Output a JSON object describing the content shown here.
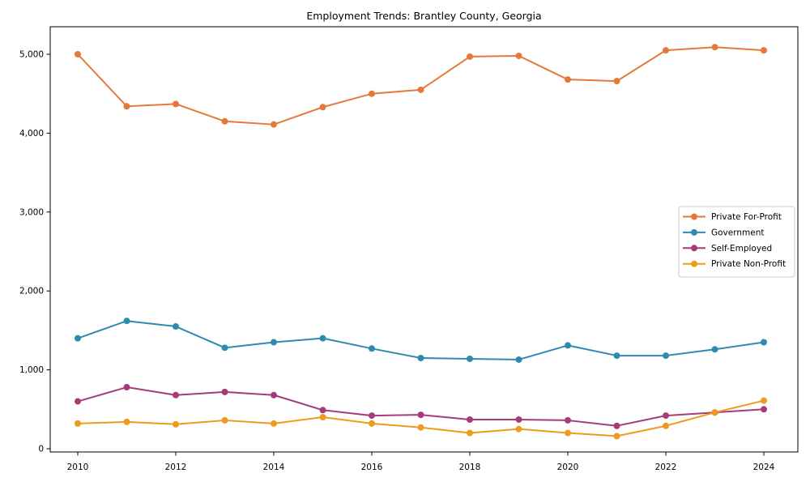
{
  "figure": {
    "background": "#ffffff",
    "spine_color": "#000000",
    "text_color": "#000000",
    "legend_border_color": "#cccccc"
  },
  "chart_data": {
    "type": "line",
    "title": "Employment Trends: Brantley County, Georgia",
    "xlabel": "",
    "ylabel": "",
    "grid": false,
    "legend_position": "center-right",
    "x": [
      2010,
      2011,
      2012,
      2013,
      2014,
      2015,
      2016,
      2017,
      2018,
      2019,
      2020,
      2021,
      2022,
      2023,
      2024
    ],
    "xticks": [
      2010,
      2012,
      2014,
      2016,
      2018,
      2020,
      2022,
      2024
    ],
    "yticks": [
      0,
      1000,
      2000,
      3000,
      4000,
      5000
    ],
    "ytick_labels": [
      "0",
      "1,000",
      "2,000",
      "3,000",
      "4,000",
      "5,000"
    ],
    "ylim": [
      -40,
      5350
    ],
    "series": [
      {
        "name": "Private For-Profit",
        "color": "#E57939",
        "values": [
          5000,
          4340,
          4370,
          4150,
          4110,
          4330,
          4500,
          4550,
          4970,
          4980,
          4680,
          4660,
          5050,
          5090,
          5050
        ]
      },
      {
        "name": "Government",
        "color": "#2E8BAE",
        "values": [
          1400,
          1620,
          1550,
          1280,
          1350,
          1400,
          1270,
          1150,
          1140,
          1130,
          1310,
          1180,
          1180,
          1260,
          1350
        ]
      },
      {
        "name": "Self-Employed",
        "color": "#A63B7B",
        "values": [
          600,
          780,
          680,
          720,
          680,
          490,
          420,
          430,
          370,
          370,
          360,
          290,
          420,
          460,
          500
        ]
      },
      {
        "name": "Private Non-Profit",
        "color": "#EE9A1D",
        "values": [
          320,
          340,
          310,
          360,
          320,
          400,
          320,
          270,
          200,
          250,
          200,
          160,
          290,
          460,
          610
        ]
      }
    ]
  }
}
